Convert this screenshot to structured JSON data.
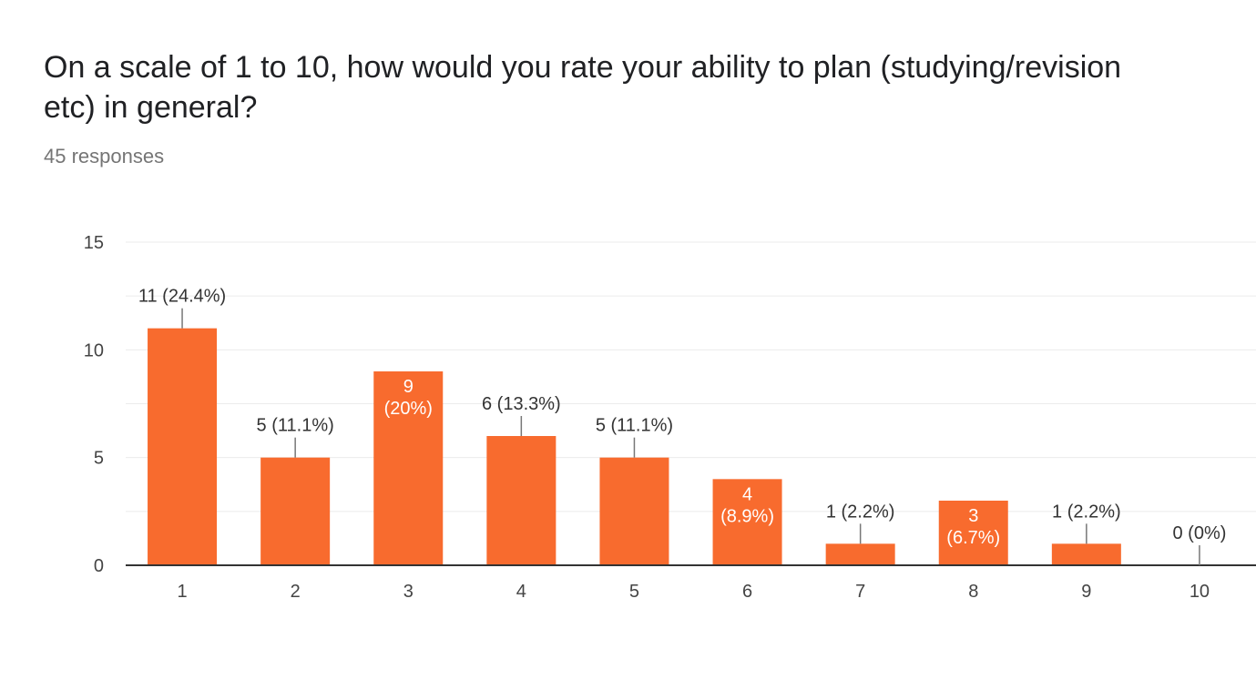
{
  "question": {
    "title": "On a scale of 1 to 10, how would you rate your ability to plan (studying/revision etc) in general?",
    "responses": "45 responses"
  },
  "colors": {
    "bar": "#f86b2e",
    "grid": "#ebebeb",
    "axis": "#333333",
    "tick_text": "#444444",
    "label_dark": "#333333",
    "label_light": "#ffffff",
    "leader": "#777777"
  },
  "chart_data": {
    "type": "bar",
    "categories": [
      "1",
      "2",
      "3",
      "4",
      "5",
      "6",
      "7",
      "8",
      "9",
      "10"
    ],
    "values": [
      11,
      5,
      9,
      6,
      5,
      4,
      1,
      3,
      1,
      0
    ],
    "data_labels": [
      "11 (24.4%)",
      "5 (11.1%)",
      "9 (20%)",
      "6 (13.3%)",
      "5 (11.1%)",
      "4 (8.9%)",
      "1 (2.2%)",
      "3 (6.7%)",
      "1 (2.2%)",
      "0 (0%)"
    ],
    "inside_labels": [
      false,
      false,
      true,
      false,
      false,
      true,
      false,
      true,
      false,
      false
    ],
    "y_ticks": [
      0,
      5,
      10,
      15
    ],
    "ylim": [
      0,
      15
    ],
    "grid": true,
    "legend": "none",
    "title": "",
    "xlabel": "",
    "ylabel": ""
  }
}
